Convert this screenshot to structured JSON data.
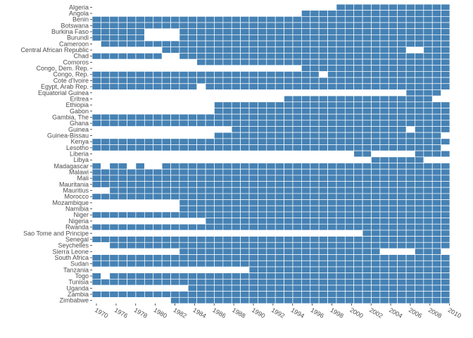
{
  "chart_data": {
    "type": "heatmap",
    "title": "",
    "xlabel": "",
    "ylabel": "",
    "fill_color": "#4682b4",
    "background": "#ffffff",
    "x_start": 1970,
    "x_end": 2010,
    "years": [
      1970,
      1971,
      1972,
      1973,
      1974,
      1975,
      1976,
      1977,
      1978,
      1979,
      1980,
      1981,
      1982,
      1983,
      1984,
      1985,
      1986,
      1987,
      1988,
      1989,
      1990,
      1991,
      1992,
      1993,
      1994,
      1995,
      1996,
      1997,
      1998,
      1999,
      2000,
      2001,
      2002,
      2003,
      2004,
      2005,
      2006,
      2007,
      2008,
      2009,
      2010
    ],
    "x_tick_labels": [
      "1970",
      "1976",
      "1978",
      "1980",
      "1982",
      "1984",
      "1986",
      "1988",
      "1990",
      "1992",
      "1994",
      "1996",
      "1998",
      "2000",
      "2002",
      "2004",
      "2006",
      "2008",
      "2010"
    ],
    "countries": [
      {
        "name": "Algeria",
        "gaps": [
          [
            1970,
            1997
          ]
        ]
      },
      {
        "name": "Angola",
        "gaps": [
          [
            1970,
            1993
          ]
        ]
      },
      {
        "name": "Benin",
        "gaps": []
      },
      {
        "name": "Botswana",
        "gaps": []
      },
      {
        "name": "Burkina Faso",
        "gaps": [
          [
            1976,
            1979
          ]
        ]
      },
      {
        "name": "Burundi",
        "gaps": [
          [
            1976,
            1979
          ]
        ]
      },
      {
        "name": "Cameroon",
        "gaps": [
          [
            1970,
            1970
          ]
        ]
      },
      {
        "name": "Central African Republic",
        "gaps": [
          [
            1970,
            1977
          ],
          [
            2006,
            2007
          ]
        ]
      },
      {
        "name": "Chad",
        "gaps": [
          [
            1978,
            1979
          ]
        ]
      },
      {
        "name": "Comoros",
        "gaps": [
          [
            1970,
            1981
          ]
        ]
      },
      {
        "name": "Congo, Dem. Rep.",
        "gaps": [
          [
            1970,
            1993
          ]
        ]
      },
      {
        "name": "Congo, Rep.",
        "gaps": [
          [
            1996,
            1996
          ]
        ]
      },
      {
        "name": "Cote d'Ivoire",
        "gaps": []
      },
      {
        "name": "Egypt, Arab Rep.",
        "gaps": [
          [
            1982,
            1982
          ]
        ]
      },
      {
        "name": "Equatorial Guinea",
        "gaps": [
          [
            1970,
            2005
          ],
          [
            2010,
            2010
          ]
        ]
      },
      {
        "name": "Eritrea",
        "gaps": [
          [
            1970,
            1991
          ],
          [
            2009,
            2010
          ]
        ]
      },
      {
        "name": "Ethiopia",
        "gaps": [
          [
            1970,
            1983
          ]
        ]
      },
      {
        "name": "Gabon",
        "gaps": [
          [
            1970,
            1983
          ]
        ]
      },
      {
        "name": "Gambia, The",
        "gaps": []
      },
      {
        "name": "Ghana",
        "gaps": []
      },
      {
        "name": "Guinea",
        "gaps": [
          [
            1970,
            1985
          ],
          [
            2006,
            2006
          ]
        ]
      },
      {
        "name": "Guinea-Bissau",
        "gaps": [
          [
            1970,
            1983
          ],
          [
            2010,
            2010
          ]
        ]
      },
      {
        "name": "Kenya",
        "gaps": []
      },
      {
        "name": "Lesotho",
        "gaps": [
          [
            2010,
            2010
          ]
        ]
      },
      {
        "name": "Liberia",
        "gaps": [
          [
            1970,
            1999
          ],
          [
            2002,
            2006
          ]
        ]
      },
      {
        "name": "Libya",
        "gaps": [
          [
            1970,
            2001
          ],
          [
            2008,
            2010
          ]
        ]
      },
      {
        "name": "Madagascar",
        "gaps": [
          [
            1971,
            1971
          ],
          [
            1974,
            1974
          ],
          [
            1976,
            1977
          ]
        ]
      },
      {
        "name": "Malawi",
        "gaps": []
      },
      {
        "name": "Mali",
        "gaps": []
      },
      {
        "name": "Mauritania",
        "gaps": []
      },
      {
        "name": "Mauritius",
        "gaps": [
          [
            1970,
            1971
          ]
        ]
      },
      {
        "name": "Morocco",
        "gaps": []
      },
      {
        "name": "Mozambique",
        "gaps": [
          [
            1970,
            1979
          ]
        ]
      },
      {
        "name": "Namibia",
        "gaps": [
          [
            1970,
            1979
          ]
        ]
      },
      {
        "name": "Niger",
        "gaps": []
      },
      {
        "name": "Nigeria",
        "gaps": [
          [
            1970,
            1982
          ]
        ]
      },
      {
        "name": "Rwanda",
        "gaps": []
      },
      {
        "name": "Sao Tome and Principe",
        "gaps": [
          [
            1970,
            2000
          ]
        ]
      },
      {
        "name": "Senegal",
        "gaps": []
      },
      {
        "name": "Seychelles",
        "gaps": [
          [
            1970,
            1971
          ]
        ]
      },
      {
        "name": "Sierra Leone",
        "gaps": [
          [
            1970,
            1979
          ],
          [
            2003,
            2006
          ],
          [
            2010,
            2010
          ]
        ]
      },
      {
        "name": "South Africa",
        "gaps": []
      },
      {
        "name": "Sudan",
        "gaps": []
      },
      {
        "name": "Tanzania",
        "gaps": [
          [
            1970,
            1987
          ]
        ]
      },
      {
        "name": "Togo",
        "gaps": [
          [
            1971,
            1971
          ]
        ]
      },
      {
        "name": "Tunisia",
        "gaps": []
      },
      {
        "name": "Uganda",
        "gaps": [
          [
            1970,
            1980
          ]
        ]
      },
      {
        "name": "Zambia",
        "gaps": []
      },
      {
        "name": "Zimbabwe",
        "gaps": [
          [
            1970,
            1978
          ]
        ]
      }
    ]
  }
}
